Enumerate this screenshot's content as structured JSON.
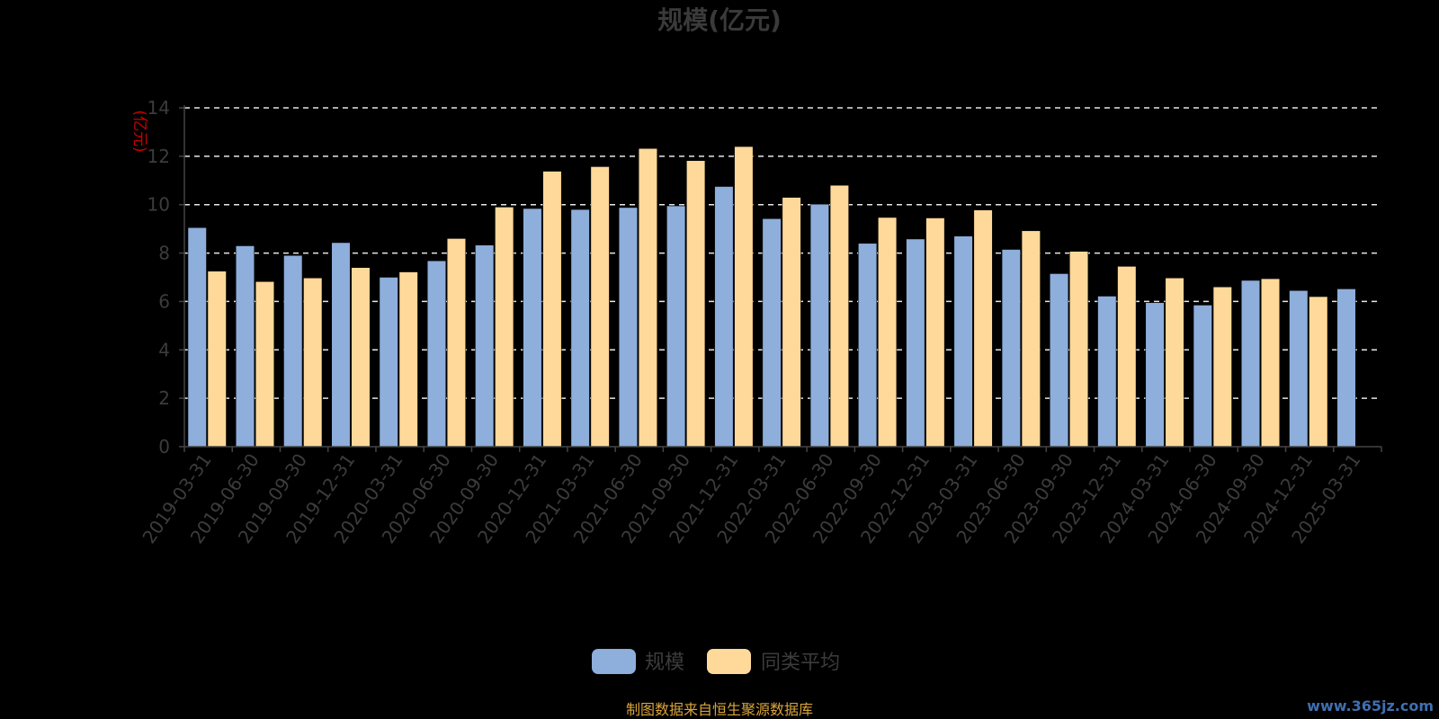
{
  "chart_data": {
    "type": "bar",
    "title": "规模(亿元)",
    "ylabel": "(亿元)",
    "ylim": [
      0,
      14
    ],
    "yticks": [
      0,
      2,
      4,
      6,
      8,
      10,
      12,
      14
    ],
    "grid": true,
    "legend_position": "bottom-center",
    "categories": [
      "2019-03-31",
      "2019-06-30",
      "2019-09-30",
      "2019-12-31",
      "2020-03-31",
      "2020-06-30",
      "2020-09-30",
      "2020-12-31",
      "2021-03-31",
      "2021-06-30",
      "2021-09-30",
      "2021-12-31",
      "2022-03-31",
      "2022-06-30",
      "2022-09-30",
      "2022-12-31",
      "2023-03-31",
      "2023-06-30",
      "2023-09-30",
      "2023-12-31",
      "2024-03-31",
      "2024-06-30",
      "2024-09-30",
      "2024-12-31",
      "2025-03-31"
    ],
    "series": [
      {
        "name": "规模",
        "color": "#8eaedb",
        "values": [
          9.05,
          8.3,
          7.9,
          8.43,
          7.0,
          7.68,
          8.33,
          9.84,
          9.8,
          9.88,
          9.95,
          10.75,
          9.42,
          10.02,
          8.4,
          8.58,
          8.7,
          8.15,
          7.15,
          6.22,
          5.95,
          5.85,
          6.87,
          6.45,
          6.52
        ]
      },
      {
        "name": "同类平均",
        "color": "#ffd99a",
        "values": [
          7.25,
          6.82,
          6.97,
          7.4,
          7.22,
          8.6,
          9.9,
          11.38,
          11.57,
          12.32,
          11.82,
          12.4,
          10.3,
          10.8,
          9.47,
          9.45,
          9.78,
          8.92,
          8.07,
          7.45,
          6.97,
          6.6,
          6.94,
          6.2,
          null
        ]
      }
    ]
  },
  "source_note": "制图数据来自恒生聚源数据库",
  "watermark": "www.365jz.com"
}
